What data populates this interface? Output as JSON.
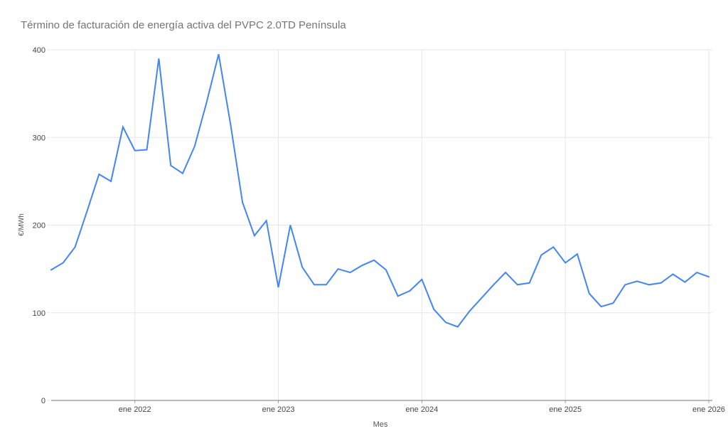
{
  "chart_data": {
    "type": "line",
    "title": "Término de facturación de energía activa del PVPC 2.0TD Península",
    "xlabel": "Mes",
    "ylabel": "€/MWh",
    "ylim": [
      0,
      400
    ],
    "y_ticks": [
      0,
      100,
      200,
      300,
      400
    ],
    "x_tick_labels": [
      "ene 2022",
      "ene 2023",
      "ene 2024",
      "ene 2025",
      "ene 2026"
    ],
    "grid": true,
    "legend": "none",
    "line_color": "#4285f4",
    "x": [
      "jun 2021",
      "jul 2021",
      "ago 2021",
      "sep 2021",
      "oct 2021",
      "nov 2021",
      "dic 2021",
      "ene 2022",
      "feb 2022",
      "mar 2022",
      "abr 2022",
      "may 2022",
      "jun 2022",
      "jul 2022",
      "ago 2022",
      "sep 2022",
      "oct 2022",
      "nov 2022",
      "dic 2022",
      "ene 2023",
      "feb 2023",
      "mar 2023",
      "abr 2023",
      "may 2023",
      "jun 2023",
      "jul 2023",
      "ago 2023",
      "sep 2023",
      "oct 2023",
      "nov 2023",
      "dic 2023",
      "ene 2024",
      "feb 2024",
      "mar 2024",
      "abr 2024",
      "may 2024",
      "jun 2024",
      "jul 2024",
      "ago 2024",
      "sep 2024",
      "oct 2024",
      "nov 2024",
      "dic 2024",
      "ene 2025",
      "feb 2025",
      "mar 2025",
      "abr 2025",
      "may 2025",
      "jun 2025",
      "jul 2025",
      "ago 2025",
      "sep 2025",
      "oct 2025",
      "nov 2025",
      "dic 2025",
      "ene 2026"
    ],
    "values": [
      149,
      157,
      175,
      216,
      258,
      250,
      312,
      285,
      286,
      390,
      268,
      259,
      290,
      340,
      395,
      315,
      226,
      188,
      205,
      129,
      200,
      152,
      132,
      132,
      150,
      146,
      154,
      160,
      149,
      119,
      125,
      138,
      104,
      89,
      84,
      102,
      117,
      132,
      146,
      132,
      134,
      166,
      175,
      157,
      167,
      122,
      107,
      111,
      132,
      136,
      132,
      134,
      144,
      135,
      146,
      141
    ]
  },
  "colors": {
    "gridline": "#e6e6e6",
    "baseline": "#757575",
    "tick": "#9e9e9e",
    "title_text": "#757575",
    "tick_text": "#444444",
    "axis_title_text": "#555555"
  }
}
